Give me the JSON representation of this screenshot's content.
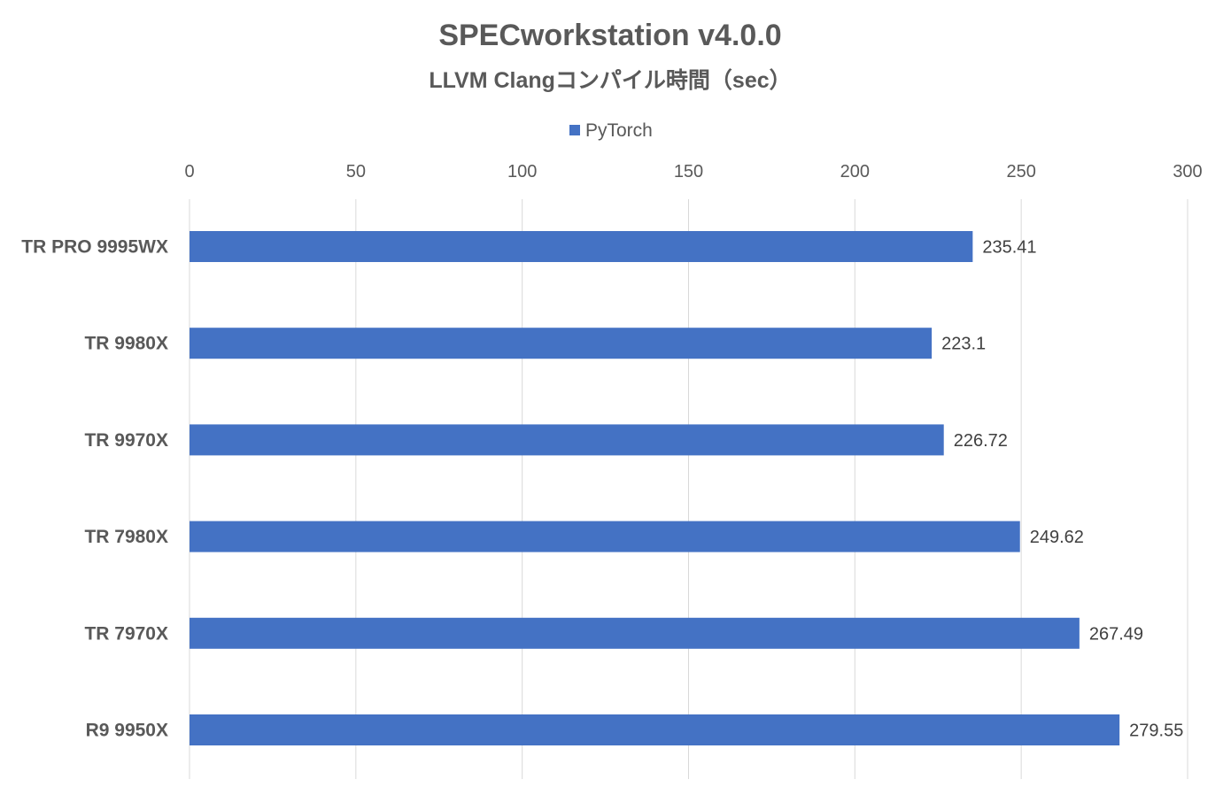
{
  "chart_data": {
    "type": "bar",
    "orientation": "horizontal",
    "title": "SPECworkstation v4.0.0",
    "subtitle": "LLVM Clangコンパイル時間（sec）",
    "categories": [
      "TR PRO 9995WX",
      "TR 9980X",
      "TR 9970X",
      "TR 7980X",
      "TR 7970X",
      "R9 9950X"
    ],
    "series": [
      {
        "name": "PyTorch",
        "color": "#4472c4",
        "values": [
          235.41,
          223.1,
          226.72,
          249.62,
          267.49,
          279.55
        ],
        "labels": [
          "235.41",
          "223.1",
          "226.72",
          "249.62",
          "267.49",
          "279.55"
        ]
      }
    ],
    "xlim": [
      0,
      300
    ],
    "xticks": [
      0,
      50,
      100,
      150,
      200,
      250,
      300
    ],
    "xtick_labels": [
      "0",
      "50",
      "100",
      "150",
      "200",
      "250",
      "300"
    ],
    "axis_position": "top",
    "legend_position": "top",
    "grid": true
  }
}
